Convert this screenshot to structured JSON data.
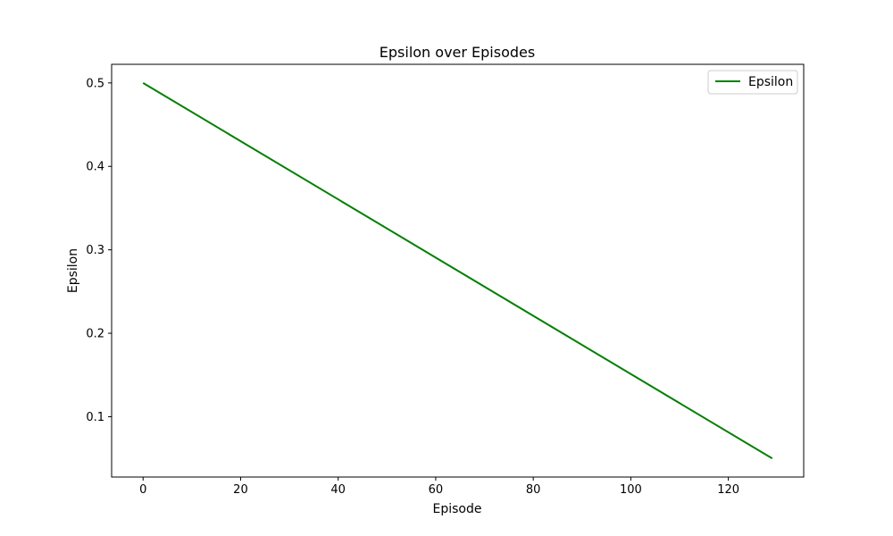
{
  "chart_data": {
    "type": "line",
    "title": "Epsilon over Episodes",
    "xlabel": "Episode",
    "ylabel": "Epsilon",
    "xlim": [
      -6.45,
      135.45
    ],
    "ylim": [
      0.0277,
      0.5223
    ],
    "xticks": [
      0,
      20,
      40,
      60,
      80,
      100,
      120
    ],
    "yticks": [
      0.1,
      0.2,
      0.3,
      0.4,
      0.5
    ],
    "xtick_labels": [
      "0",
      "20",
      "40",
      "60",
      "80",
      "100",
      "120"
    ],
    "ytick_labels": [
      "0.1",
      "0.2",
      "0.3",
      "0.4",
      "0.5"
    ],
    "grid": false,
    "legend": "top-right",
    "series": [
      {
        "name": "Epsilon",
        "color": "#008000",
        "x": [
          0,
          129
        ],
        "y": [
          0.5,
          0.05
        ]
      }
    ]
  }
}
